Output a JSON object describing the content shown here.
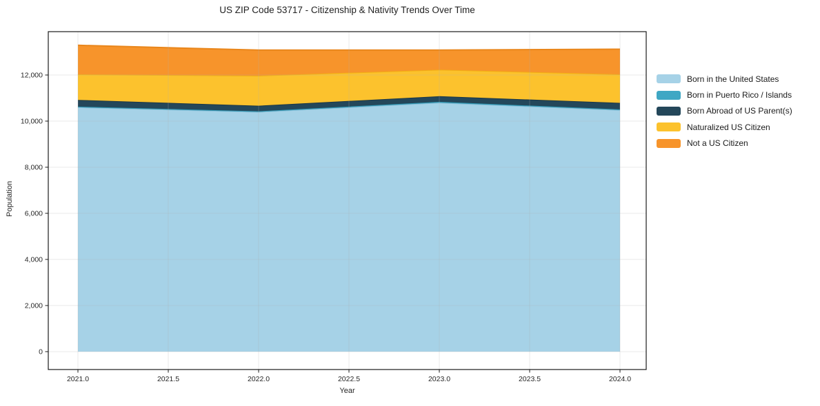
{
  "page": {
    "background_color": "#ffffff",
    "text_color": "#1f1f1f"
  },
  "chart_data": {
    "type": "area",
    "stacked": true,
    "title": "US ZIP Code 53717 - Citizenship & Nativity Trends Over Time",
    "xlabel": "Year",
    "ylabel": "Population",
    "x": [
      2021,
      2022,
      2023,
      2024
    ],
    "series": [
      {
        "name": "Born in the United States",
        "color": "#a6d2e7",
        "edge_color": "#88bed8",
        "values": [
          10600,
          10400,
          10800,
          10480
        ]
      },
      {
        "name": "Born in Puerto Rico / Islands",
        "color": "#3fa7c4",
        "edge_color": "#2e93ae",
        "values": [
          30,
          30,
          40,
          30
        ]
      },
      {
        "name": "Born Abroad of US Parent(s)",
        "color": "#24475a",
        "edge_color": "#1b3747",
        "values": [
          290,
          240,
          240,
          280
        ]
      },
      {
        "name": "Naturalized US Citizen",
        "color": "#fcc22d",
        "edge_color": "#f2ae14",
        "values": [
          1110,
          1300,
          1150,
          1240
        ]
      },
      {
        "name": "Not a US Citizen",
        "color": "#f7942b",
        "edge_color": "#e9861b",
        "values": [
          1260,
          1110,
          850,
          1090
        ]
      }
    ],
    "totals": [
      13290,
      13080,
      13080,
      13120
    ],
    "xticks": {
      "values": [
        2021,
        2021.5,
        2022,
        2022.5,
        2023,
        2023.5,
        2024
      ],
      "labels": [
        "2021.0",
        "2021.5",
        "2022.0",
        "2022.5",
        "2023.0",
        "2023.5",
        "2024.0"
      ]
    },
    "yticks": {
      "values": [
        0,
        2000,
        4000,
        6000,
        8000,
        10000,
        12000
      ],
      "labels": [
        "0",
        "2,000",
        "4,000",
        "6,000",
        "8,000",
        "10,000",
        "12,000"
      ]
    },
    "grid": true,
    "grid_color": "#b0b0b0",
    "spine_color": "#1a1a1a",
    "legend_position": "right-outside-frameless"
  }
}
